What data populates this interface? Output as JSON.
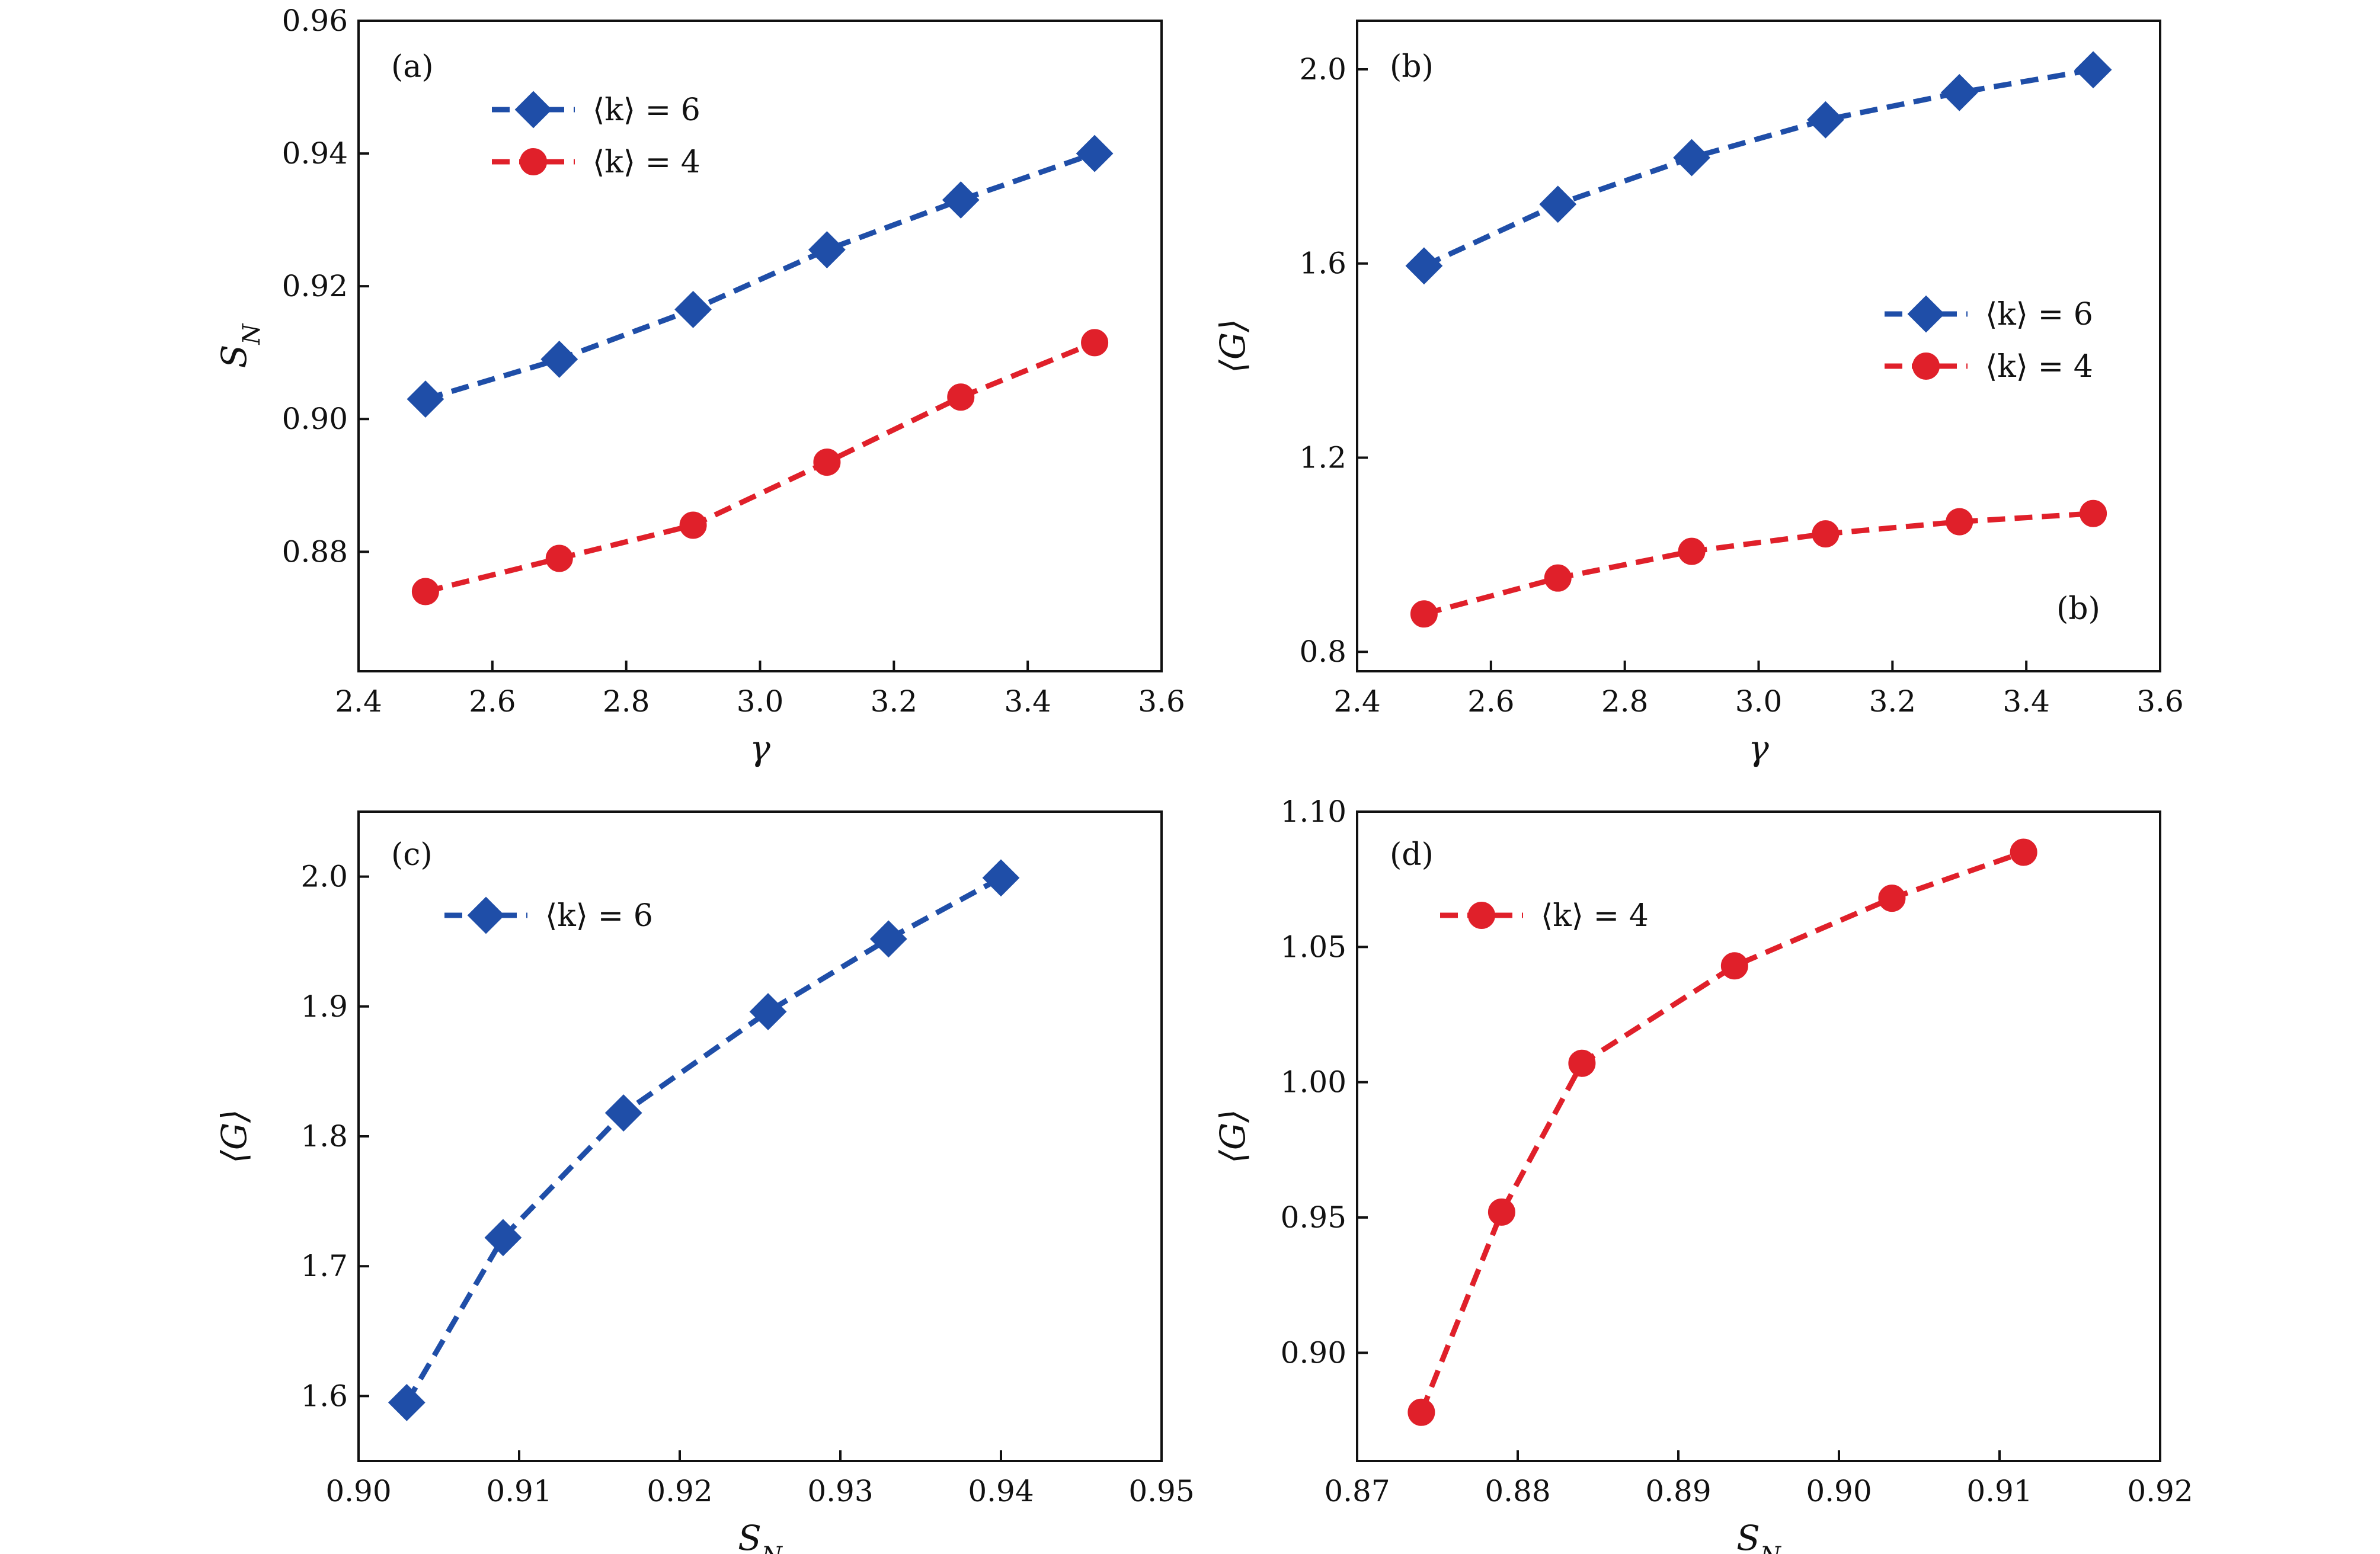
{
  "colors": {
    "blue": "#1f4ea8",
    "red": "#e0202a",
    "axis": "#111111",
    "background": "#ffffff"
  },
  "chart_data": [
    {
      "id": "a",
      "type": "line",
      "panel_tag": "(a)",
      "xlabel": "γ",
      "ylabel": "S_N",
      "xlim": [
        2.4,
        3.6
      ],
      "ylim": [
        0.862,
        0.96
      ],
      "xticks": [
        "2.4",
        "2.6",
        "2.8",
        "3.0",
        "3.2",
        "3.4",
        "3.6"
      ],
      "yticks": [
        "0.88",
        "0.90",
        "0.92",
        "0.94",
        "0.96"
      ],
      "grid": false,
      "legend_position": "top-left",
      "series": [
        {
          "name": "⟨k⟩ = 6",
          "color": "#1f4ea8",
          "marker": "diamond",
          "x": [
            2.5,
            2.7,
            2.9,
            3.1,
            3.3,
            3.5
          ],
          "y": [
            0.903,
            0.909,
            0.9165,
            0.9255,
            0.933,
            0.94
          ]
        },
        {
          "name": "⟨k⟩ = 4",
          "color": "#e0202a",
          "marker": "circle",
          "x": [
            2.5,
            2.7,
            2.9,
            3.1,
            3.3,
            3.5
          ],
          "y": [
            0.874,
            0.879,
            0.884,
            0.8935,
            0.9033,
            0.9115
          ]
        }
      ]
    },
    {
      "id": "b",
      "type": "line",
      "panel_tag": "(b)",
      "extra_tag": "(b)",
      "xlabel": "γ",
      "ylabel": "⟨G⟩",
      "xlim": [
        2.4,
        3.6
      ],
      "ylim": [
        0.76,
        2.1
      ],
      "xticks": [
        "2.4",
        "2.6",
        "2.8",
        "3.0",
        "3.2",
        "3.4",
        "3.6"
      ],
      "yticks": [
        "0.8",
        "1.2",
        "1.6",
        "2.0"
      ],
      "grid": false,
      "legend_position": "center-right",
      "series": [
        {
          "name": "⟨k⟩ = 6",
          "color": "#1f4ea8",
          "marker": "diamond",
          "x": [
            2.5,
            2.7,
            2.9,
            3.1,
            3.3,
            3.5
          ],
          "y": [
            1.595,
            1.722,
            1.818,
            1.896,
            1.952,
            1.999
          ]
        },
        {
          "name": "⟨k⟩ = 4",
          "color": "#e0202a",
          "marker": "circle",
          "x": [
            2.5,
            2.7,
            2.9,
            3.1,
            3.3,
            3.5
          ],
          "y": [
            0.878,
            0.952,
            1.007,
            1.043,
            1.068,
            1.085
          ]
        }
      ]
    },
    {
      "id": "c",
      "type": "line",
      "panel_tag": "(c)",
      "xlabel": "S_N",
      "ylabel": "⟨G⟩",
      "xlim": [
        0.9,
        0.95
      ],
      "ylim": [
        1.55,
        2.05
      ],
      "xticks": [
        "0.90",
        "0.91",
        "0.92",
        "0.93",
        "0.94",
        "0.95"
      ],
      "yticks": [
        "1.6",
        "1.7",
        "1.8",
        "1.9",
        "2.0"
      ],
      "grid": false,
      "legend_position": "top-left",
      "series": [
        {
          "name": "⟨k⟩ = 6",
          "color": "#1f4ea8",
          "marker": "diamond",
          "x": [
            0.903,
            0.909,
            0.9165,
            0.9255,
            0.933,
            0.94
          ],
          "y": [
            1.595,
            1.722,
            1.818,
            1.896,
            1.952,
            1.999
          ]
        }
      ]
    },
    {
      "id": "d",
      "type": "line",
      "panel_tag": "(d)",
      "xlabel": "S_N",
      "ylabel": "⟨G⟩",
      "xlim": [
        0.87,
        0.92
      ],
      "ylim": [
        0.86,
        1.1
      ],
      "xticks": [
        "0.87",
        "0.88",
        "0.89",
        "0.90",
        "0.91",
        "0.92"
      ],
      "yticks": [
        "0.90",
        "0.95",
        "1.00",
        "1.05",
        "1.10"
      ],
      "grid": false,
      "legend_position": "top-left",
      "series": [
        {
          "name": "⟨k⟩ = 4",
          "color": "#e0202a",
          "marker": "circle",
          "x": [
            0.874,
            0.879,
            0.884,
            0.8935,
            0.9033,
            0.9115
          ],
          "y": [
            0.878,
            0.952,
            1.007,
            1.043,
            1.068,
            1.085
          ]
        }
      ]
    }
  ]
}
